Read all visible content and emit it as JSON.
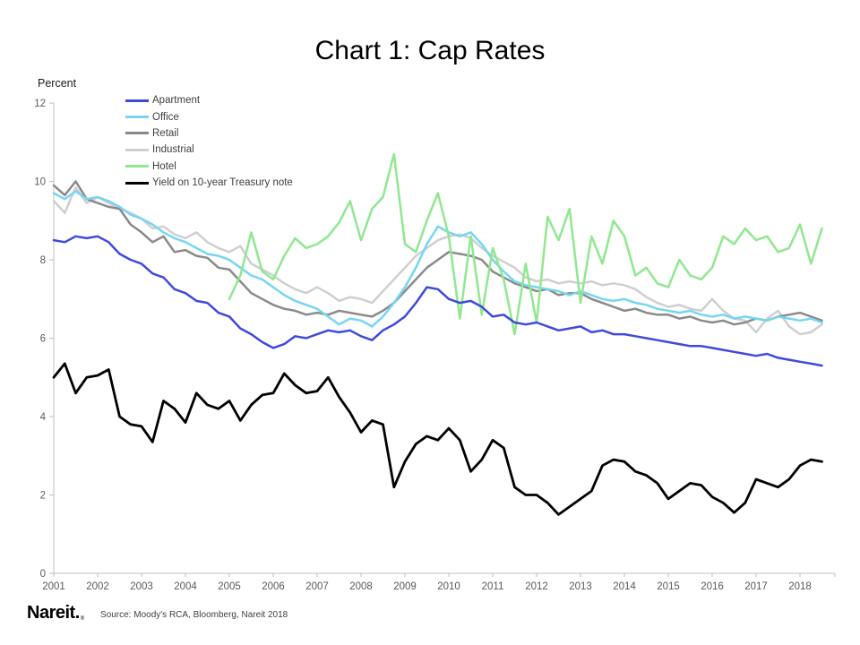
{
  "slide": {
    "title": "Chart 1: Cap Rates"
  },
  "footer": {
    "logo_text": "Nareit.",
    "registered_mark": "®",
    "source": "Source: Moody's RCA, Bloomberg, Nareit 2018"
  },
  "chart_data": {
    "type": "line",
    "title": "Chart 1: Cap Rates",
    "xlabel": "",
    "ylabel": "Percent",
    "ylim": [
      0,
      12
    ],
    "yticks": [
      0,
      2,
      4,
      6,
      8,
      10,
      12
    ],
    "xticks": [
      2001,
      2002,
      2003,
      2004,
      2005,
      2006,
      2007,
      2008,
      2009,
      2010,
      2011,
      2012,
      2013,
      2014,
      2015,
      2016,
      2017,
      2018
    ],
    "x_step_years": 0.25,
    "grid": false,
    "legend_position": "top-left-inside",
    "axis_color": "#bfbfbf",
    "tick_label_color": "#595959",
    "series": [
      {
        "name": "Apartment",
        "color": "#3F4ADB",
        "x_start": 2001.0,
        "values": [
          8.5,
          8.45,
          8.6,
          8.55,
          8.6,
          8.45,
          8.15,
          8.0,
          7.9,
          7.65,
          7.55,
          7.25,
          7.15,
          6.95,
          6.9,
          6.65,
          6.55,
          6.25,
          6.1,
          5.9,
          5.75,
          5.85,
          6.05,
          6.0,
          6.1,
          6.2,
          6.15,
          6.2,
          6.05,
          5.95,
          6.2,
          6.35,
          6.55,
          6.9,
          7.3,
          7.25,
          7.0,
          6.9,
          6.95,
          6.8,
          6.55,
          6.6,
          6.4,
          6.35,
          6.4,
          6.3,
          6.2,
          6.25,
          6.3,
          6.15,
          6.2,
          6.1,
          6.1,
          6.05,
          6.0,
          5.95,
          5.9,
          5.85,
          5.8,
          5.8,
          5.75,
          5.7,
          5.65,
          5.6,
          5.55,
          5.6,
          5.5,
          5.45,
          5.4,
          5.35,
          5.3
        ]
      },
      {
        "name": "Office",
        "color": "#76D6F2",
        "x_start": 2001.0,
        "values": [
          9.7,
          9.55,
          9.75,
          9.55,
          9.6,
          9.5,
          9.35,
          9.15,
          9.05,
          8.9,
          8.7,
          8.55,
          8.45,
          8.3,
          8.15,
          8.1,
          8.0,
          7.8,
          7.6,
          7.5,
          7.3,
          7.1,
          6.95,
          6.85,
          6.75,
          6.55,
          6.35,
          6.5,
          6.45,
          6.3,
          6.55,
          6.9,
          7.3,
          7.8,
          8.4,
          8.85,
          8.7,
          8.6,
          8.7,
          8.4,
          8.0,
          7.7,
          7.45,
          7.35,
          7.3,
          7.25,
          7.2,
          7.1,
          7.2,
          7.1,
          7.0,
          6.95,
          7.0,
          6.9,
          6.85,
          6.75,
          6.7,
          6.65,
          6.7,
          6.6,
          6.55,
          6.6,
          6.5,
          6.55,
          6.5,
          6.45,
          6.55,
          6.5,
          6.45,
          6.5,
          6.4
        ]
      },
      {
        "name": "Retail",
        "color": "#8A8A8A",
        "x_start": 2001.0,
        "values": [
          9.9,
          9.65,
          10.0,
          9.55,
          9.45,
          9.35,
          9.3,
          8.9,
          8.7,
          8.45,
          8.6,
          8.2,
          8.25,
          8.1,
          8.05,
          7.8,
          7.75,
          7.45,
          7.15,
          7.0,
          6.85,
          6.75,
          6.7,
          6.6,
          6.65,
          6.6,
          6.7,
          6.65,
          6.6,
          6.55,
          6.7,
          6.9,
          7.2,
          7.5,
          7.8,
          8.0,
          8.2,
          8.15,
          8.1,
          8.0,
          7.7,
          7.55,
          7.4,
          7.3,
          7.2,
          7.25,
          7.1,
          7.15,
          7.15,
          7.0,
          6.9,
          6.8,
          6.7,
          6.75,
          6.65,
          6.6,
          6.6,
          6.5,
          6.55,
          6.45,
          6.4,
          6.45,
          6.35,
          6.4,
          6.5,
          6.45,
          6.55,
          6.6,
          6.65,
          6.55,
          6.45
        ]
      },
      {
        "name": "Industrial",
        "color": "#CFCFCF",
        "x_start": 2001.0,
        "values": [
          9.5,
          9.2,
          9.85,
          9.45,
          9.6,
          9.45,
          9.3,
          9.2,
          9.05,
          8.8,
          8.85,
          8.65,
          8.55,
          8.7,
          8.45,
          8.3,
          8.2,
          8.35,
          7.9,
          7.75,
          7.6,
          7.4,
          7.25,
          7.15,
          7.3,
          7.15,
          6.95,
          7.05,
          7.0,
          6.9,
          7.2,
          7.5,
          7.8,
          8.1,
          8.3,
          8.5,
          8.6,
          8.65,
          8.55,
          8.3,
          8.1,
          7.95,
          7.8,
          7.55,
          7.45,
          7.5,
          7.4,
          7.45,
          7.4,
          7.45,
          7.35,
          7.4,
          7.35,
          7.25,
          7.05,
          6.9,
          6.8,
          6.85,
          6.75,
          6.7,
          7.0,
          6.7,
          6.5,
          6.45,
          6.15,
          6.5,
          6.7,
          6.3,
          6.1,
          6.15,
          6.35
        ]
      },
      {
        "name": "Hotel",
        "color": "#90E890",
        "x_start": 2005.0,
        "values": [
          7.0,
          7.6,
          8.7,
          7.7,
          7.5,
          8.1,
          8.55,
          8.3,
          8.4,
          8.6,
          8.95,
          9.5,
          8.5,
          9.3,
          9.6,
          10.7,
          8.4,
          8.2,
          9.0,
          9.7,
          8.6,
          6.5,
          8.6,
          6.6,
          8.3,
          7.5,
          6.1,
          7.9,
          6.4,
          9.1,
          8.5,
          9.3,
          6.9,
          8.6,
          7.9,
          9.0,
          8.6,
          7.6,
          7.8,
          7.4,
          7.3,
          8.0,
          7.6,
          7.5,
          7.8,
          8.6,
          8.4,
          8.8,
          8.5,
          8.6,
          8.2,
          8.3,
          8.9,
          7.9,
          8.8
        ]
      },
      {
        "name": "Yield on 10-year Treasury note",
        "color": "#000000",
        "x_start": 2001.0,
        "values": [
          5.0,
          5.35,
          4.6,
          5.0,
          5.05,
          5.2,
          4.0,
          3.8,
          3.75,
          3.35,
          4.4,
          4.2,
          3.85,
          4.6,
          4.3,
          4.2,
          4.4,
          3.9,
          4.3,
          4.55,
          4.6,
          5.1,
          4.8,
          4.6,
          4.65,
          5.0,
          4.5,
          4.1,
          3.6,
          3.9,
          3.8,
          2.2,
          2.85,
          3.3,
          3.5,
          3.4,
          3.7,
          3.4,
          2.6,
          2.9,
          3.4,
          3.2,
          2.2,
          2.0,
          2.0,
          1.8,
          1.5,
          1.7,
          1.9,
          2.1,
          2.75,
          2.9,
          2.85,
          2.6,
          2.5,
          2.3,
          1.9,
          2.1,
          2.3,
          2.25,
          1.95,
          1.8,
          1.55,
          1.8,
          2.4,
          2.3,
          2.2,
          2.4,
          2.75,
          2.9,
          2.85
        ]
      }
    ]
  }
}
